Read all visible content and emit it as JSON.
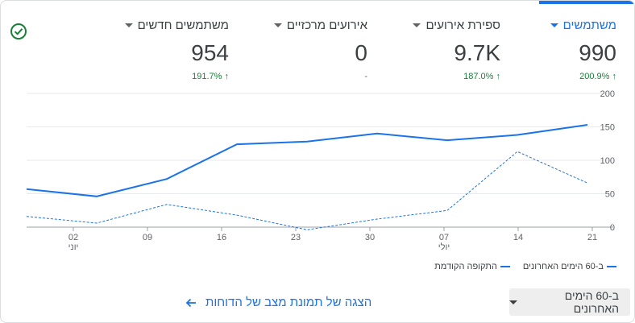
{
  "metrics": [
    {
      "label": "משתמשים",
      "value": "990",
      "change": "200.9%",
      "trend": "up",
      "active": true
    },
    {
      "label": "ספירת אירועים",
      "value": "9.7K",
      "change": "187.0%",
      "trend": "up",
      "active": false
    },
    {
      "label": "אירועים מרכזיים",
      "value": "0",
      "change": "-",
      "trend": "none",
      "active": false
    },
    {
      "label": "משתמשים חדשים",
      "value": "954",
      "change": "191.7%",
      "trend": "up",
      "active": false
    }
  ],
  "status_icon": "check-circle-icon",
  "chart_data": {
    "type": "line",
    "x_ticks": [
      {
        "day": "02",
        "month": "יוני"
      },
      {
        "day": "09",
        "month": ""
      },
      {
        "day": "16",
        "month": ""
      },
      {
        "day": "23",
        "month": ""
      },
      {
        "day": "30",
        "month": ""
      },
      {
        "day": "07",
        "month": "יולי"
      },
      {
        "day": "14",
        "month": ""
      },
      {
        "day": "21",
        "month": ""
      }
    ],
    "y_ticks": [
      "200",
      "150",
      "100",
      "50",
      "0"
    ],
    "ylim": [
      0,
      200
    ],
    "series": [
      {
        "name": "ב-60 הימים האחרונים",
        "style": "solid",
        "color": "#1a73e8",
        "values": [
          57,
          46,
          72,
          124,
          128,
          140,
          130,
          138,
          153
        ]
      },
      {
        "name": "התקופה הקודמת",
        "style": "dashed",
        "color": "#1a73e8",
        "values": [
          16,
          6,
          34,
          18,
          -4,
          12,
          25,
          113,
          66
        ]
      }
    ]
  },
  "legend": {
    "current": "ב-60 הימים האחרונים",
    "previous": "התקופה הקודמת"
  },
  "date_range": {
    "label": "ב-60 הימים האחרונים"
  },
  "report_link": {
    "label": "הצגה של תמונת מצב של הדוחות",
    "icon": "arrow-left-icon"
  }
}
